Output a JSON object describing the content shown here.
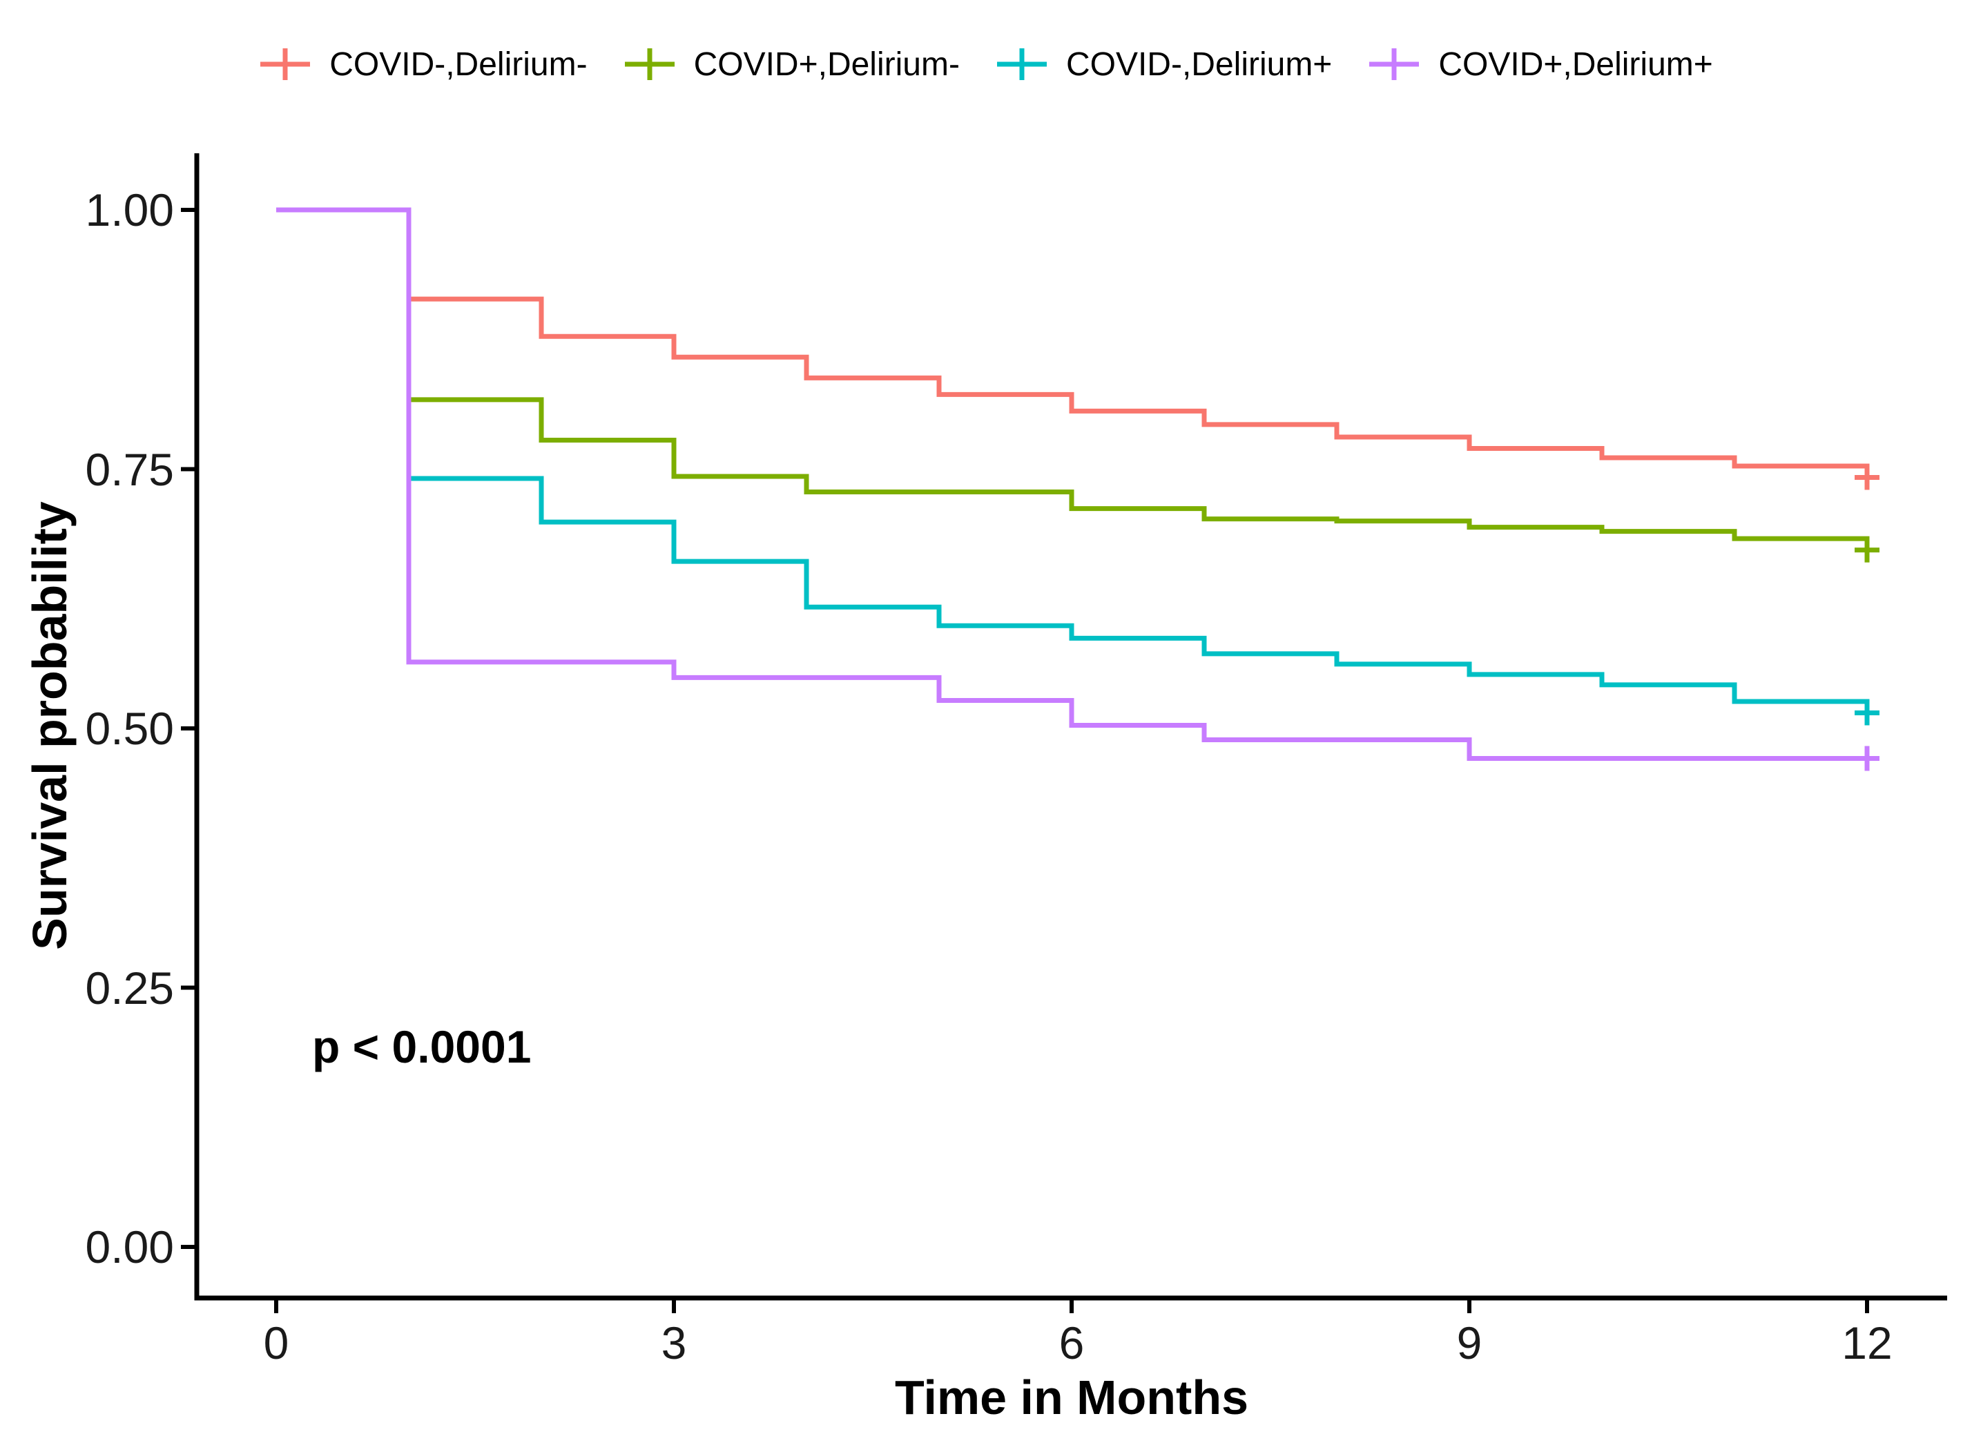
{
  "legend": {
    "items": [
      {
        "label": "COVID-,Delirium-",
        "color": "#F8766D"
      },
      {
        "label": "COVID+,Delirium-",
        "color": "#7CAE00"
      },
      {
        "label": "COVID-,Delirium+",
        "color": "#00BFC4"
      },
      {
        "label": "COVID+,Delirium+",
        "color": "#C77CFF"
      }
    ]
  },
  "annotation": {
    "p_value": "p < 0.0001"
  },
  "axes": {
    "x": {
      "title": "Time in Months",
      "tick_labels": [
        "0",
        "3",
        "6",
        "9",
        "12"
      ]
    },
    "y": {
      "title": "Survival probability",
      "tick_labels": [
        "0.00",
        "0.25",
        "0.50",
        "0.75",
        "1.00"
      ]
    }
  },
  "chart_data": {
    "type": "line",
    "subtype": "kaplan-meier-step",
    "title": "",
    "xlabel": "Time in Months",
    "ylabel": "Survival probability",
    "xlim": [
      0,
      12
    ],
    "ylim": [
      0,
      1
    ],
    "grid": false,
    "legend_position": "top",
    "x_ticks": [
      0,
      3,
      6,
      9,
      12
    ],
    "y_ticks": [
      0,
      0.25,
      0.5,
      0.75,
      1.0
    ],
    "x_months": [
      0,
      1,
      2,
      3,
      4,
      5,
      6,
      7,
      8,
      9,
      10,
      11,
      12
    ],
    "series": [
      {
        "name": "COVID-,Delirium-",
        "color": "#F8766D",
        "values": [
          1.0,
          0.914,
          0.878,
          0.858,
          0.838,
          0.822,
          0.806,
          0.793,
          0.781,
          0.77,
          0.761,
          0.753,
          0.742
        ],
        "censored_at": [
          12
        ]
      },
      {
        "name": "COVID+,Delirium-",
        "color": "#7CAE00",
        "values": [
          1.0,
          0.817,
          0.778,
          0.743,
          0.728,
          0.728,
          0.712,
          0.702,
          0.7,
          0.694,
          0.69,
          0.683,
          0.672
        ],
        "censored_at": [
          12
        ]
      },
      {
        "name": "COVID-,Delirium+",
        "color": "#00BFC4",
        "values": [
          1.0,
          0.741,
          0.699,
          0.661,
          0.617,
          0.599,
          0.587,
          0.572,
          0.562,
          0.552,
          0.542,
          0.526,
          0.515
        ],
        "censored_at": [
          12
        ]
      },
      {
        "name": "COVID+,Delirium+",
        "color": "#C77CFF",
        "values": [
          1.0,
          0.564,
          0.564,
          0.549,
          0.549,
          0.527,
          0.503,
          0.489,
          0.489,
          0.471,
          0.471,
          0.471,
          0.471
        ],
        "censored_at": [
          12
        ]
      }
    ],
    "annotations": [
      {
        "text": "p < 0.0001",
        "x": 0.3,
        "y": 0.19
      }
    ]
  }
}
